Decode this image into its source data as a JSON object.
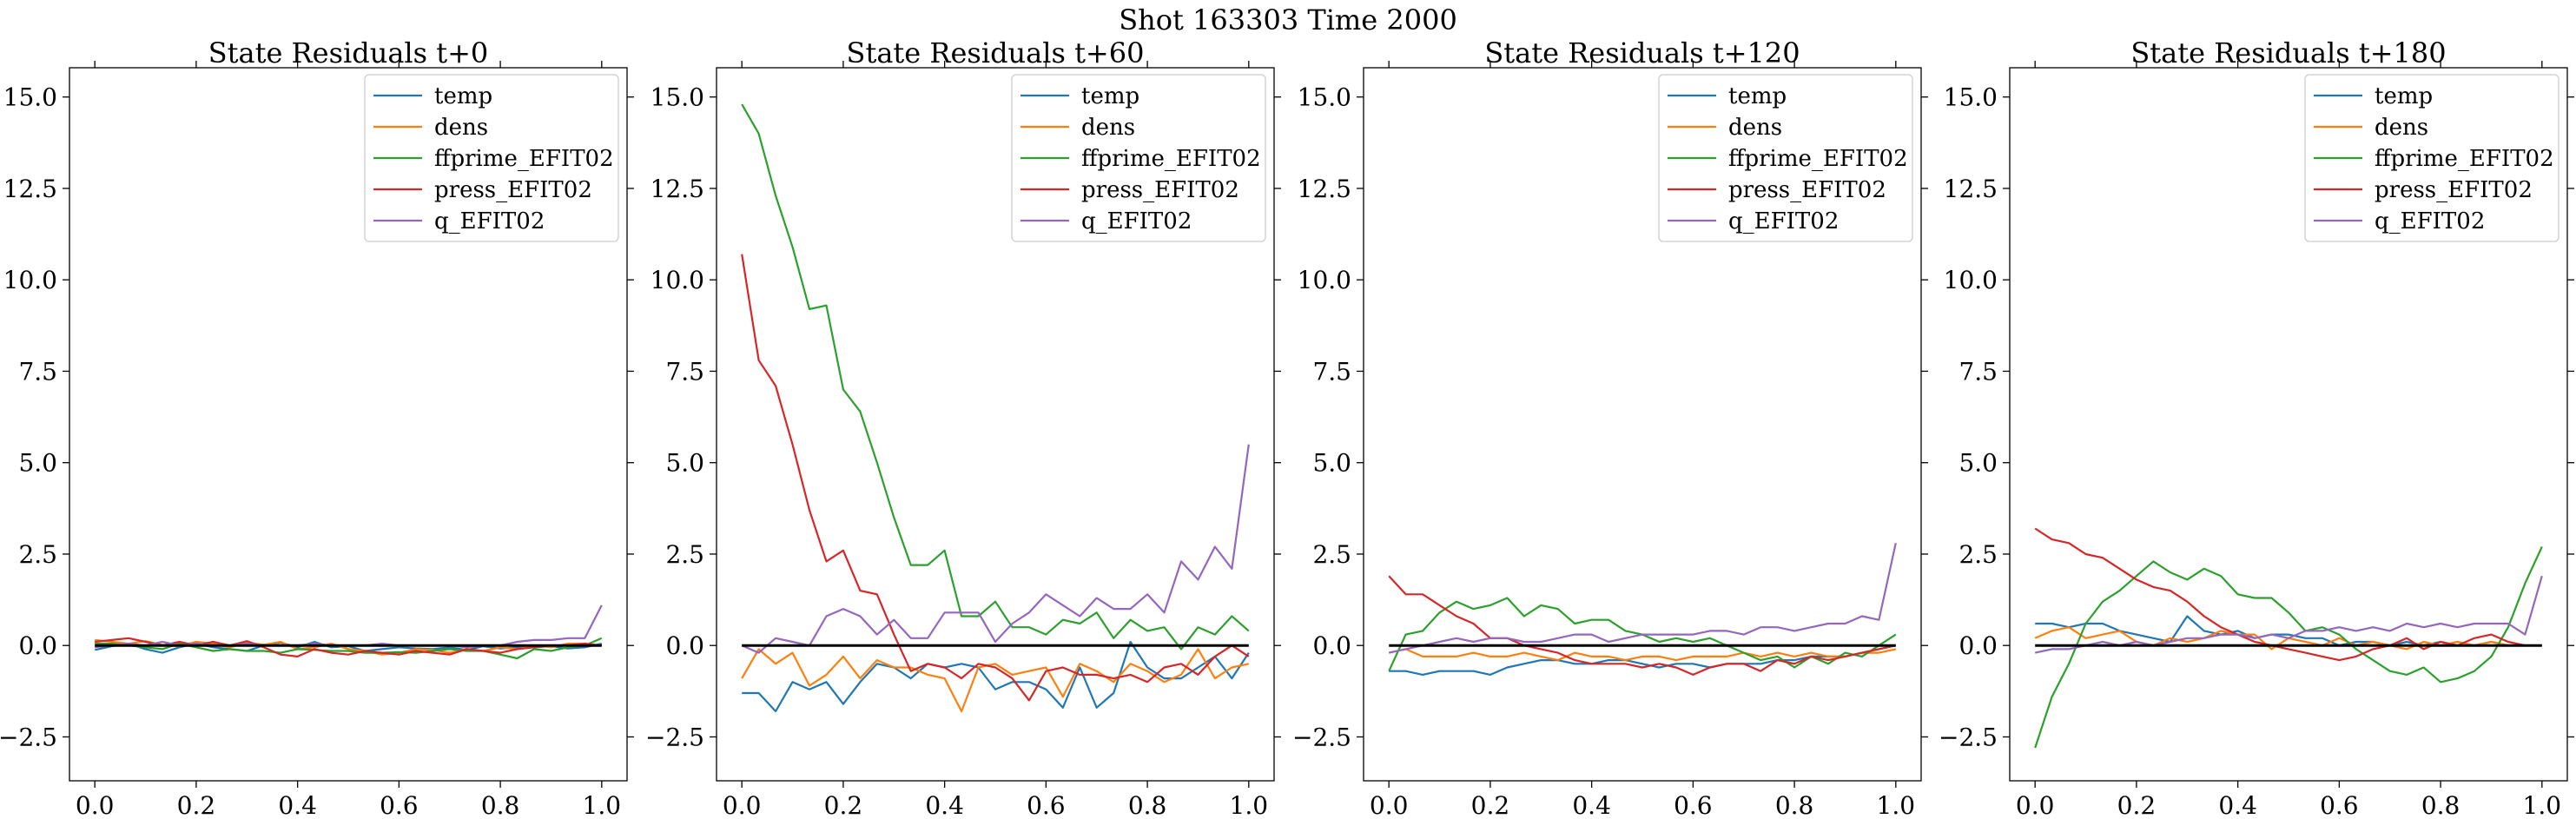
{
  "figure": {
    "suptitle": "Shot 163303   Time 2000"
  },
  "colors": {
    "temp": "#1f77b4",
    "dens": "#ff7f0e",
    "ffprime_EFIT02": "#2ca02c",
    "press_EFIT02": "#d62728",
    "q_EFIT02": "#9467bd",
    "zero_line": "#000000"
  },
  "chart_data": [
    {
      "type": "line",
      "title": "State Residuals t+0",
      "xlabel": "",
      "ylabel": "",
      "xlim": [
        -0.05,
        1.05
      ],
      "ylim": [
        -3.7,
        15.8
      ],
      "xticks": [
        "0.0",
        "0.2",
        "0.4",
        "0.6",
        "0.8",
        "1.0"
      ],
      "yticks": [
        "−2.5",
        "0.0",
        "2.5",
        "5.0",
        "7.5",
        "10.0",
        "12.5",
        "15.0"
      ],
      "legend": "top-right",
      "series": [
        {
          "name": "temp",
          "values": [
            -0.12,
            -0.02,
            0.05,
            -0.1,
            -0.2,
            -0.05,
            0.05,
            -0.05,
            -0.1,
            -0.15,
            0.0,
            0.08,
            -0.05,
            0.1,
            -0.05,
            -0.02,
            -0.15,
            -0.1,
            -0.05,
            -0.08,
            -0.1,
            -0.05,
            -0.12,
            -0.02,
            -0.08,
            -0.05,
            -0.05,
            -0.02,
            -0.08,
            -0.05,
            0.05
          ]
        },
        {
          "name": "dens",
          "values": [
            0.15,
            0.1,
            0.05,
            0.12,
            0.02,
            -0.02,
            0.1,
            0.05,
            -0.05,
            0.08,
            0.02,
            0.1,
            -0.1,
            -0.05,
            0.05,
            -0.1,
            -0.15,
            -0.25,
            -0.2,
            -0.1,
            -0.12,
            -0.2,
            -0.1,
            -0.15,
            -0.05,
            -0.1,
            0.0,
            -0.05,
            0.05,
            0.05,
            0.0
          ]
        },
        {
          "name": "ffprime_EFIT02",
          "values": [
            0.05,
            0.05,
            0.0,
            -0.05,
            -0.1,
            0.05,
            -0.05,
            -0.15,
            -0.1,
            -0.15,
            -0.15,
            -0.2,
            -0.1,
            -0.12,
            -0.15,
            -0.15,
            -0.2,
            -0.2,
            -0.18,
            -0.2,
            -0.15,
            -0.1,
            -0.15,
            -0.15,
            -0.25,
            -0.35,
            -0.1,
            -0.15,
            -0.05,
            0.0,
            0.2
          ]
        },
        {
          "name": "press_EFIT02",
          "values": [
            0.1,
            0.15,
            0.2,
            0.1,
            0.0,
            0.1,
            0.0,
            0.1,
            0.0,
            0.12,
            -0.05,
            -0.25,
            -0.3,
            -0.1,
            -0.2,
            -0.25,
            -0.15,
            -0.2,
            -0.25,
            -0.15,
            -0.2,
            -0.25,
            -0.1,
            -0.15,
            -0.2,
            -0.1,
            -0.05,
            0.0,
            0.0,
            0.05,
            0.0
          ]
        },
        {
          "name": "q_EFIT02",
          "values": [
            -0.05,
            0.0,
            0.05,
            0.0,
            0.1,
            0.0,
            0.05,
            0.0,
            0.0,
            0.05,
            0.0,
            0.0,
            0.0,
            0.05,
            0.0,
            0.0,
            0.0,
            0.05,
            0.0,
            0.0,
            0.0,
            0.0,
            -0.05,
            0.0,
            0.0,
            0.1,
            0.15,
            0.15,
            0.2,
            0.2,
            1.1
          ]
        },
        {
          "name": "zero",
          "values": [
            0.0,
            0.0
          ]
        }
      ]
    },
    {
      "type": "line",
      "title": "State Residuals t+60",
      "xlabel": "",
      "ylabel": "",
      "xlim": [
        -0.05,
        1.05
      ],
      "ylim": [
        -3.7,
        15.8
      ],
      "xticks": [
        "0.0",
        "0.2",
        "0.4",
        "0.6",
        "0.8",
        "1.0"
      ],
      "yticks": [
        "−2.5",
        "0.0",
        "2.5",
        "5.0",
        "7.5",
        "10.0",
        "12.5",
        "15.0"
      ],
      "legend": "top-right",
      "series": [
        {
          "name": "temp",
          "values": [
            -1.3,
            -1.3,
            -1.8,
            -1.0,
            -1.2,
            -1.0,
            -1.6,
            -1.0,
            -0.5,
            -0.6,
            -0.9,
            -0.5,
            -0.6,
            -0.5,
            -0.6,
            -1.2,
            -1.0,
            -1.0,
            -1.2,
            -1.7,
            -0.6,
            -1.7,
            -1.3,
            0.1,
            -0.6,
            -0.9,
            -0.9,
            -0.6,
            -0.3,
            -0.9,
            -0.2
          ]
        },
        {
          "name": "dens",
          "values": [
            -0.9,
            -0.1,
            -0.5,
            -0.2,
            -1.1,
            -0.8,
            -0.3,
            -0.9,
            -0.4,
            -0.6,
            -0.6,
            -0.8,
            -0.9,
            -1.8,
            -0.6,
            -0.5,
            -0.8,
            -0.7,
            -0.6,
            -1.4,
            -0.5,
            -0.7,
            -1.0,
            -0.5,
            -0.7,
            -1.0,
            -0.8,
            -0.1,
            -0.9,
            -0.6,
            -0.5
          ]
        },
        {
          "name": "ffprime_EFIT02",
          "values": [
            14.8,
            14.0,
            12.3,
            10.9,
            9.2,
            9.3,
            7.0,
            6.4,
            5.0,
            3.5,
            2.2,
            2.2,
            2.6,
            0.8,
            0.8,
            1.2,
            0.5,
            0.5,
            0.3,
            0.7,
            0.6,
            0.9,
            0.2,
            0.7,
            0.4,
            0.5,
            -0.1,
            0.5,
            0.3,
            0.8,
            0.4
          ]
        },
        {
          "name": "press_EFIT02",
          "values": [
            10.7,
            7.8,
            7.1,
            5.5,
            3.7,
            2.3,
            2.6,
            1.5,
            1.4,
            0.3,
            -0.7,
            -0.5,
            -0.6,
            -0.9,
            -0.5,
            -0.6,
            -0.9,
            -1.5,
            -0.7,
            -0.6,
            -0.8,
            -0.8,
            -0.9,
            -0.8,
            -1.0,
            -0.6,
            -0.5,
            -0.8,
            -0.3,
            0.0,
            -0.3
          ]
        },
        {
          "name": "q_EFIT02",
          "values": [
            0.0,
            -0.2,
            0.2,
            0.1,
            0.0,
            0.8,
            1.0,
            0.8,
            0.3,
            0.7,
            0.2,
            0.2,
            0.9,
            0.9,
            0.9,
            0.1,
            0.6,
            0.9,
            1.4,
            1.1,
            0.8,
            1.3,
            1.0,
            1.0,
            1.4,
            0.9,
            2.3,
            1.8,
            2.7,
            2.1,
            5.5
          ]
        },
        {
          "name": "zero",
          "values": [
            0.0,
            0.0
          ]
        }
      ]
    },
    {
      "type": "line",
      "title": "State Residuals t+120",
      "xlabel": "",
      "ylabel": "",
      "xlim": [
        -0.05,
        1.05
      ],
      "ylim": [
        -3.7,
        15.8
      ],
      "xticks": [
        "0.0",
        "0.2",
        "0.4",
        "0.6",
        "0.8",
        "1.0"
      ],
      "yticks": [
        "−2.5",
        "0.0",
        "2.5",
        "5.0",
        "7.5",
        "10.0",
        "12.5",
        "15.0"
      ],
      "legend": "top-right",
      "series": [
        {
          "name": "temp",
          "values": [
            -0.7,
            -0.7,
            -0.8,
            -0.7,
            -0.7,
            -0.7,
            -0.8,
            -0.6,
            -0.5,
            -0.4,
            -0.4,
            -0.5,
            -0.5,
            -0.4,
            -0.4,
            -0.5,
            -0.6,
            -0.5,
            -0.5,
            -0.6,
            -0.5,
            -0.5,
            -0.5,
            -0.4,
            -0.4,
            -0.3,
            -0.3,
            -0.3,
            -0.2,
            -0.1,
            0.0
          ]
        },
        {
          "name": "dens",
          "values": [
            -0.2,
            -0.1,
            -0.3,
            -0.3,
            -0.3,
            -0.2,
            -0.3,
            -0.3,
            -0.2,
            -0.3,
            -0.4,
            -0.2,
            -0.3,
            -0.3,
            -0.4,
            -0.3,
            -0.3,
            -0.4,
            -0.3,
            -0.3,
            -0.3,
            -0.2,
            -0.3,
            -0.2,
            -0.3,
            -0.2,
            -0.3,
            -0.3,
            -0.2,
            -0.2,
            -0.1
          ]
        },
        {
          "name": "ffprime_EFIT02",
          "values": [
            -0.7,
            0.3,
            0.4,
            0.9,
            1.2,
            1.0,
            1.1,
            1.3,
            0.8,
            1.1,
            1.0,
            0.6,
            0.7,
            0.7,
            0.4,
            0.3,
            0.1,
            0.2,
            0.1,
            0.2,
            0.0,
            -0.2,
            -0.4,
            -0.3,
            -0.6,
            -0.3,
            -0.5,
            -0.2,
            -0.3,
            0.0,
            0.3
          ]
        },
        {
          "name": "press_EFIT02",
          "values": [
            1.9,
            1.4,
            1.4,
            1.1,
            0.8,
            0.6,
            0.2,
            0.2,
            0.0,
            -0.1,
            -0.2,
            -0.4,
            -0.5,
            -0.5,
            -0.5,
            -0.6,
            -0.5,
            -0.6,
            -0.8,
            -0.6,
            -0.5,
            -0.5,
            -0.7,
            -0.4,
            -0.5,
            -0.3,
            -0.4,
            -0.3,
            -0.2,
            -0.1,
            0.0
          ]
        },
        {
          "name": "q_EFIT02",
          "values": [
            -0.2,
            -0.1,
            0.0,
            0.1,
            0.2,
            0.1,
            0.2,
            0.2,
            0.1,
            0.1,
            0.2,
            0.3,
            0.3,
            0.1,
            0.2,
            0.3,
            0.3,
            0.3,
            0.3,
            0.4,
            0.4,
            0.3,
            0.5,
            0.5,
            0.4,
            0.5,
            0.6,
            0.6,
            0.8,
            0.7,
            2.8
          ]
        },
        {
          "name": "zero",
          "values": [
            0.0,
            0.0
          ]
        }
      ]
    },
    {
      "type": "line",
      "title": "State Residuals t+180",
      "xlabel": "",
      "ylabel": "",
      "xlim": [
        -0.05,
        1.05
      ],
      "ylim": [
        -3.7,
        15.8
      ],
      "xticks": [
        "0.0",
        "0.2",
        "0.4",
        "0.6",
        "0.8",
        "1.0"
      ],
      "yticks": [
        "−2.5",
        "0.0",
        "2.5",
        "5.0",
        "7.5",
        "10.0",
        "12.5",
        "15.0"
      ],
      "legend": "top-right",
      "series": [
        {
          "name": "temp",
          "values": [
            0.6,
            0.6,
            0.5,
            0.6,
            0.6,
            0.4,
            0.3,
            0.2,
            0.1,
            0.8,
            0.4,
            0.3,
            0.4,
            0.2,
            0.3,
            0.3,
            0.2,
            0.2,
            0.0,
            0.1,
            0.1,
            0.0,
            0.1,
            0.0,
            0.1,
            0.0,
            0.0,
            0.1,
            0.0,
            0.0,
            0.0
          ]
        },
        {
          "name": "dens",
          "values": [
            0.2,
            0.4,
            0.5,
            0.2,
            0.3,
            0.4,
            0.1,
            0.0,
            0.2,
            0.1,
            0.2,
            0.4,
            0.3,
            0.3,
            -0.1,
            0.2,
            0.1,
            0.0,
            0.2,
            0.0,
            0.1,
            0.0,
            -0.1,
            0.1,
            0.0,
            0.1,
            0.0,
            0.1,
            0.0,
            0.0,
            0.0
          ]
        },
        {
          "name": "ffprime_EFIT02",
          "values": [
            -2.8,
            -1.4,
            -0.5,
            0.6,
            1.2,
            1.5,
            1.9,
            2.3,
            2.0,
            1.8,
            2.1,
            1.9,
            1.4,
            1.3,
            1.3,
            0.9,
            0.4,
            0.5,
            0.3,
            -0.1,
            -0.4,
            -0.7,
            -0.8,
            -0.6,
            -1.0,
            -0.9,
            -0.7,
            -0.3,
            0.5,
            1.7,
            2.7
          ]
        },
        {
          "name": "press_EFIT02",
          "values": [
            3.2,
            2.9,
            2.8,
            2.5,
            2.4,
            2.1,
            1.8,
            1.6,
            1.5,
            1.2,
            0.8,
            0.5,
            0.3,
            0.1,
            0.0,
            -0.1,
            -0.2,
            -0.3,
            -0.4,
            -0.3,
            -0.1,
            0.0,
            0.2,
            -0.1,
            0.1,
            0.0,
            0.2,
            0.3,
            0.1,
            0.0,
            0.0
          ]
        },
        {
          "name": "q_EFIT02",
          "values": [
            -0.2,
            -0.1,
            -0.1,
            0.0,
            0.1,
            0.0,
            0.1,
            0.0,
            0.1,
            0.2,
            0.2,
            0.3,
            0.3,
            0.2,
            0.3,
            0.2,
            0.4,
            0.4,
            0.5,
            0.4,
            0.5,
            0.4,
            0.6,
            0.5,
            0.6,
            0.5,
            0.6,
            0.6,
            0.6,
            0.3,
            1.9
          ]
        },
        {
          "name": "zero",
          "values": [
            0.0,
            0.0
          ]
        }
      ]
    }
  ]
}
